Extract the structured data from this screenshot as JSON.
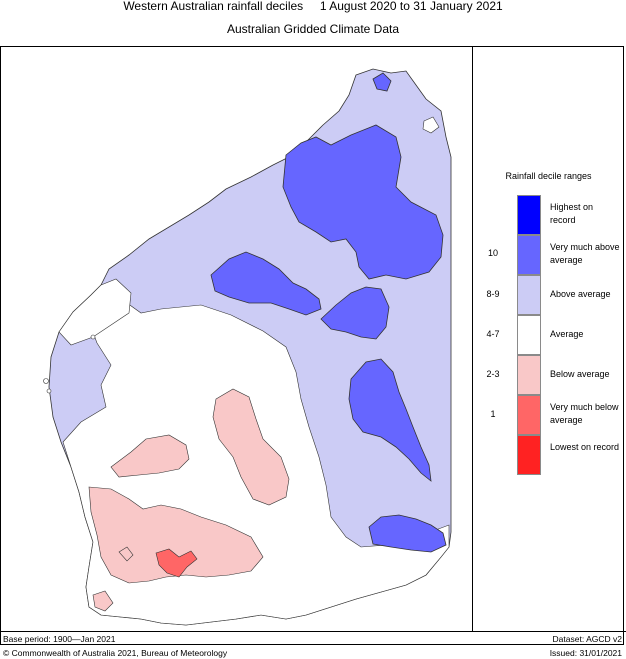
{
  "header": {
    "title": "Western Australian rainfall deciles     1 August 2020 to 31 January 2021",
    "subtitle": "Australian Gridded Climate Data"
  },
  "legend": {
    "title": "Rainfall decile ranges",
    "items": [
      {
        "label": "Highest on record",
        "range": "",
        "color": "#0000ff"
      },
      {
        "label": "Very much above average",
        "range": "10",
        "color": "#6666ff"
      },
      {
        "label": "Above average",
        "range": "8-9",
        "color": "#ccccf5"
      },
      {
        "label": "Average",
        "range": "4-7",
        "color": "#ffffff"
      },
      {
        "label": "Below average",
        "range": "2-3",
        "color": "#f9c8c8"
      },
      {
        "label": "Very much below average",
        "range": "1",
        "color": "#ff6666"
      },
      {
        "label": "Lowest on record",
        "range": "",
        "color": "#ff2222"
      }
    ]
  },
  "footer": {
    "base_period": "Base period: 1900—Jan 2021",
    "dataset": "Dataset: AGCD v2",
    "copyright": "© Commonwealth of Australia 2021, Bureau of Meteorology",
    "issued": "Issued: 31/01/2021"
  }
}
